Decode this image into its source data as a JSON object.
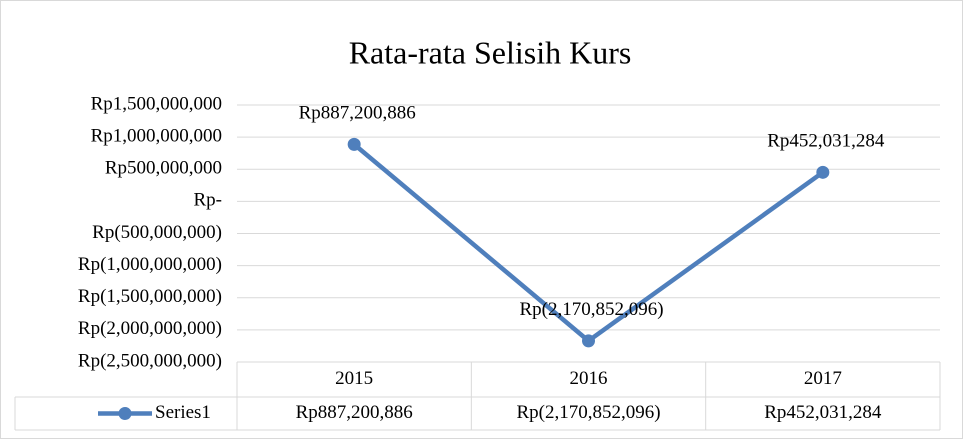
{
  "chart_data": {
    "type": "line",
    "title": "Rata-rata Selisih Kurs",
    "categories": [
      "2015",
      "2016",
      "2017"
    ],
    "series": [
      {
        "name": "Series1",
        "color": "#4f7fbc",
        "values": [
          887200886,
          -2170852096,
          452031284
        ],
        "value_labels": [
          "Rp887,200,886",
          "Rp(2,170,852,096)",
          "Rp452,031,284"
        ]
      }
    ],
    "ylim": [
      -2500000000,
      1500000000
    ],
    "yticks": [
      {
        "value": 1500000000,
        "label": "Rp1,500,000,000"
      },
      {
        "value": 1000000000,
        "label": "Rp1,000,000,000"
      },
      {
        "value": 500000000,
        "label": "Rp500,000,000"
      },
      {
        "value": 0,
        "label": "Rp-"
      },
      {
        "value": -500000000,
        "label": "Rp(500,000,000)"
      },
      {
        "value": -1000000000,
        "label": "Rp(1,000,000,000)"
      },
      {
        "value": -1500000000,
        "label": "Rp(1,500,000,000)"
      },
      {
        "value": -2000000000,
        "label": "Rp(2,000,000,000)"
      },
      {
        "value": -2500000000,
        "label": "Rp(2,500,000,000)"
      }
    ],
    "grid": true,
    "data_table": true
  }
}
